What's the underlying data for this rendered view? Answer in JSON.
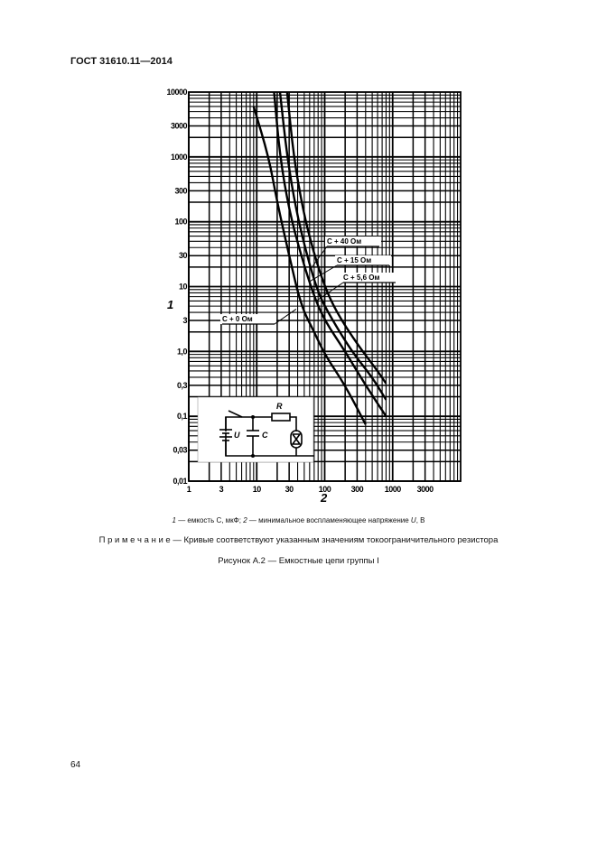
{
  "header": {
    "standard": "ГОСТ 31610.11—2014"
  },
  "chart_data": {
    "type": "line",
    "x_scale": "log",
    "y_scale": "log",
    "xlim": [
      1,
      10000
    ],
    "ylim": [
      0.01,
      10000
    ],
    "grid": true,
    "xlabel": "2",
    "ylabel": "1",
    "x_ticks": [
      {
        "v": 1,
        "label": "1"
      },
      {
        "v": 3,
        "label": "3"
      },
      {
        "v": 10,
        "label": "10"
      },
      {
        "v": 30,
        "label": "30"
      },
      {
        "v": 100,
        "label": "100"
      },
      {
        "v": 300,
        "label": "300"
      },
      {
        "v": 1000,
        "label": "1000"
      },
      {
        "v": 3000,
        "label": "3000"
      }
    ],
    "y_ticks": [
      {
        "v": 10000,
        "label": "10000"
      },
      {
        "v": 3000,
        "label": "3000"
      },
      {
        "v": 1000,
        "label": "1000"
      },
      {
        "v": 300,
        "label": "300"
      },
      {
        "v": 100,
        "label": "100"
      },
      {
        "v": 30,
        "label": "30"
      },
      {
        "v": 10,
        "label": "10"
      },
      {
        "v": 3,
        "label": "3"
      },
      {
        "v": 1,
        "label": "1,0"
      },
      {
        "v": 0.3,
        "label": "0,3"
      },
      {
        "v": 0.1,
        "label": "0,1"
      },
      {
        "v": 0.03,
        "label": "0,03"
      },
      {
        "v": 0.01,
        "label": "0,01"
      }
    ],
    "series": [
      {
        "name": "C + 0 Ом",
        "x": [
          9,
          15,
          20,
          30,
          45,
          70,
          100,
          200,
          400
        ],
        "y": [
          6000,
          1000,
          200,
          30,
          5,
          2,
          0.9,
          0.3,
          0.075
        ],
        "label_at": [
          38,
          4.5
        ]
      },
      {
        "name": "C + 5,6 Ом",
        "x": [
          18,
          22,
          30,
          45,
          70,
          100,
          200,
          400,
          800
        ],
        "y": [
          10000,
          1000,
          150,
          30,
          7,
          3,
          1,
          0.3,
          0.1
        ],
        "label_at": [
          75,
          6
        ]
      },
      {
        "name": "C + 15 Ом",
        "x": [
          22,
          28,
          38,
          55,
          80,
          120,
          250,
          500,
          800
        ],
        "y": [
          10000,
          1000,
          150,
          30,
          8,
          3.5,
          1,
          0.4,
          0.18
        ],
        "label_at": [
          60,
          12
        ]
      },
      {
        "name": "C + 40 Ом",
        "x": [
          28,
          35,
          48,
          68,
          100,
          150,
          300,
          600,
          800
        ],
        "y": [
          10000,
          1000,
          150,
          35,
          10,
          4,
          1.3,
          0.5,
          0.32
        ],
        "label_at": [
          65,
          20
        ]
      }
    ],
    "inset": {
      "resistor": "R",
      "source": "U",
      "capacitor": "C"
    }
  },
  "legend_text": {
    "n1": "1",
    "t1": " — емкость С, мкФ; ",
    "n2": "2",
    "t2": " — минимальное воспламеняющее напряжение ",
    "u": "U",
    "t3": ", В"
  },
  "note": "П р и м е ч а н и е  — Кривые соответствуют указанным значениям токоограничительного резистора",
  "figure_caption": "Рисунок А.2 — Емкостные цепи группы I",
  "page_number": "64"
}
